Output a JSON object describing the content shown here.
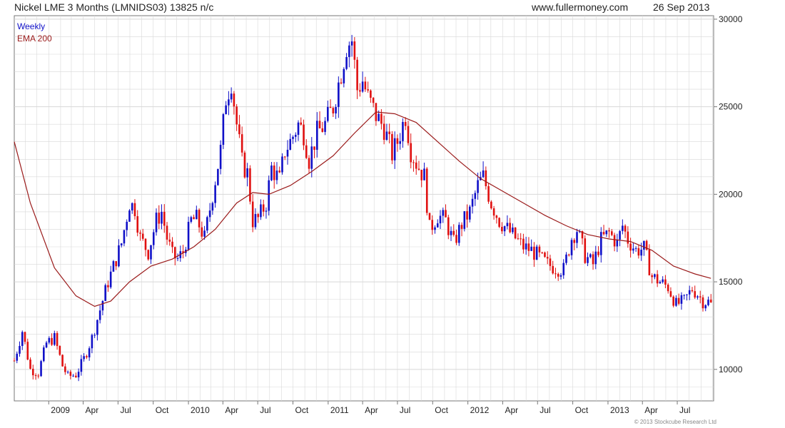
{
  "header": {
    "title": "Nickel LME 3 Months (LMNIDS03) 13825 n/c",
    "site": "www.fullermoney.com",
    "date": "26 Sep 2013"
  },
  "copyright": "© 2013 Stockcube Research Ltd",
  "colors": {
    "up": "#1010c8",
    "down": "#e01010",
    "ema": "#9a1a1a",
    "grid": "#d8d8d8",
    "frame": "#777777",
    "weekly": "#1010c8"
  },
  "chart_data": {
    "type": "candlestick",
    "title": "Nickel LME 3 Months (LMNIDS03) 13825 n/c",
    "frequency_label": "Weekly",
    "x_range": [
      "2008-10-03",
      "2013-10-04"
    ],
    "ylim": [
      8200,
      30200
    ],
    "grid": true,
    "legend": [
      "Weekly",
      "EMA 200"
    ],
    "y_ticks": [
      {
        "value": 10000,
        "label": "10000"
      },
      {
        "value": 15000,
        "label": "15000"
      },
      {
        "value": 20000,
        "label": "20000"
      },
      {
        "value": 25000,
        "label": "25000"
      },
      {
        "value": 30000,
        "label": "30000"
      }
    ],
    "x_ticks": [
      {
        "date": "2009-01-01",
        "label": "2009"
      },
      {
        "date": "2009-04-01",
        "label": "Apr"
      },
      {
        "date": "2009-07-01",
        "label": "Jul"
      },
      {
        "date": "2009-10-01",
        "label": "Oct"
      },
      {
        "date": "2010-01-01",
        "label": "2010"
      },
      {
        "date": "2010-04-01",
        "label": "Apr"
      },
      {
        "date": "2010-07-01",
        "label": "Jul"
      },
      {
        "date": "2010-10-01",
        "label": "Oct"
      },
      {
        "date": "2011-01-01",
        "label": "2011"
      },
      {
        "date": "2011-04-01",
        "label": "Apr"
      },
      {
        "date": "2011-07-01",
        "label": "Jul"
      },
      {
        "date": "2011-10-01",
        "label": "Oct"
      },
      {
        "date": "2012-01-01",
        "label": "2012"
      },
      {
        "date": "2012-04-01",
        "label": "Apr"
      },
      {
        "date": "2012-07-01",
        "label": "Jul"
      },
      {
        "date": "2012-10-01",
        "label": "Oct"
      },
      {
        "date": "2013-01-01",
        "label": "2013"
      },
      {
        "date": "2013-04-01",
        "label": "Apr"
      },
      {
        "date": "2013-07-01",
        "label": "Jul"
      }
    ],
    "series": [
      {
        "name": "Weekly",
        "close_path": [
          [
            "2008-10-03",
            10500
          ],
          [
            "2008-10-24",
            12200
          ],
          [
            "2008-11-14",
            10000
          ],
          [
            "2008-12-05",
            9800
          ],
          [
            "2008-12-26",
            11500
          ],
          [
            "2009-01-16",
            11800
          ],
          [
            "2009-02-06",
            10200
          ],
          [
            "2009-02-20",
            9600
          ],
          [
            "2009-03-13",
            9700
          ],
          [
            "2009-04-03",
            10600
          ],
          [
            "2009-04-24",
            11800
          ],
          [
            "2009-05-15",
            13400
          ],
          [
            "2009-06-05",
            15000
          ],
          [
            "2009-06-26",
            16300
          ],
          [
            "2009-07-10",
            17200
          ],
          [
            "2009-07-31",
            19500
          ],
          [
            "2009-08-14",
            19200
          ],
          [
            "2009-08-28",
            17500
          ],
          [
            "2009-09-18",
            16700
          ],
          [
            "2009-10-09",
            18500
          ],
          [
            "2009-10-23",
            19000
          ],
          [
            "2009-11-06",
            17500
          ],
          [
            "2009-11-20",
            16500
          ],
          [
            "2009-12-04",
            16300
          ],
          [
            "2009-12-18",
            16700
          ],
          [
            "2010-01-08",
            18500
          ],
          [
            "2010-01-22",
            18600
          ],
          [
            "2010-02-12",
            17500
          ],
          [
            "2010-03-05",
            20000
          ],
          [
            "2010-03-26",
            22500
          ],
          [
            "2010-04-09",
            25500
          ],
          [
            "2010-04-23",
            26500
          ],
          [
            "2010-05-07",
            24000
          ],
          [
            "2010-05-21",
            21800
          ],
          [
            "2010-06-04",
            21200
          ],
          [
            "2010-06-18",
            18500
          ],
          [
            "2010-07-02",
            18600
          ],
          [
            "2010-07-23",
            19500
          ],
          [
            "2010-08-06",
            21500
          ],
          [
            "2010-08-27",
            20800
          ],
          [
            "2010-09-10",
            22500
          ],
          [
            "2010-09-24",
            23000
          ],
          [
            "2010-10-15",
            24000
          ],
          [
            "2010-10-29",
            23500
          ],
          [
            "2010-11-12",
            22000
          ],
          [
            "2010-12-03",
            23500
          ],
          [
            "2010-12-24",
            24000
          ],
          [
            "2011-01-14",
            25000
          ],
          [
            "2011-02-04",
            27000
          ],
          [
            "2011-02-18",
            28500
          ],
          [
            "2011-03-04",
            28800
          ],
          [
            "2011-03-18",
            26000
          ],
          [
            "2011-04-01",
            26500
          ],
          [
            "2011-04-15",
            25500
          ],
          [
            "2011-05-06",
            24500
          ],
          [
            "2011-05-27",
            23800
          ],
          [
            "2011-06-17",
            22300
          ],
          [
            "2011-07-01",
            23000
          ],
          [
            "2011-07-22",
            24500
          ],
          [
            "2011-08-05",
            22500
          ],
          [
            "2011-08-19",
            21800
          ],
          [
            "2011-09-09",
            21000
          ],
          [
            "2011-09-23",
            18000
          ],
          [
            "2011-10-14",
            18800
          ],
          [
            "2011-11-04",
            18500
          ],
          [
            "2011-11-25",
            17200
          ],
          [
            "2011-12-16",
            18300
          ],
          [
            "2012-01-06",
            19000
          ],
          [
            "2012-01-27",
            20500
          ],
          [
            "2012-02-10",
            21000
          ],
          [
            "2012-03-02",
            19500
          ],
          [
            "2012-03-23",
            18500
          ],
          [
            "2012-04-13",
            18000
          ],
          [
            "2012-05-04",
            17500
          ],
          [
            "2012-05-25",
            17000
          ],
          [
            "2012-06-15",
            16800
          ],
          [
            "2012-07-06",
            16400
          ],
          [
            "2012-07-27",
            16000
          ],
          [
            "2012-08-17",
            15800
          ],
          [
            "2012-09-07",
            15700
          ],
          [
            "2012-09-28",
            17500
          ],
          [
            "2012-10-12",
            18000
          ],
          [
            "2012-11-02",
            16500
          ],
          [
            "2012-11-23",
            16000
          ],
          [
            "2012-12-14",
            17400
          ],
          [
            "2013-01-04",
            17800
          ],
          [
            "2013-01-25",
            17200
          ],
          [
            "2013-02-08",
            18200
          ],
          [
            "2013-02-22",
            17400
          ],
          [
            "2013-03-15",
            16800
          ],
          [
            "2013-04-05",
            16900
          ],
          [
            "2013-04-26",
            15300
          ],
          [
            "2013-05-17",
            15000
          ],
          [
            "2013-06-07",
            14700
          ],
          [
            "2013-06-28",
            13700
          ],
          [
            "2013-07-19",
            13900
          ],
          [
            "2013-08-09",
            14600
          ],
          [
            "2013-08-23",
            14300
          ],
          [
            "2013-09-06",
            13900
          ],
          [
            "2013-09-27",
            13825
          ]
        ]
      },
      {
        "name": "EMA 200",
        "points": [
          [
            "2008-10-03",
            23000
          ],
          [
            "2008-11-14",
            19500
          ],
          [
            "2009-01-16",
            15800
          ],
          [
            "2009-03-13",
            14200
          ],
          [
            "2009-05-01",
            13600
          ],
          [
            "2009-06-12",
            13900
          ],
          [
            "2009-07-31",
            15000
          ],
          [
            "2009-09-25",
            15900
          ],
          [
            "2009-11-20",
            16300
          ],
          [
            "2010-01-15",
            17000
          ],
          [
            "2010-03-12",
            18000
          ],
          [
            "2010-05-07",
            19500
          ],
          [
            "2010-06-18",
            20100
          ],
          [
            "2010-07-30",
            20000
          ],
          [
            "2010-09-24",
            20500
          ],
          [
            "2010-11-19",
            21300
          ],
          [
            "2011-01-14",
            22200
          ],
          [
            "2011-03-11",
            23500
          ],
          [
            "2011-05-06",
            24700
          ],
          [
            "2011-06-24",
            24600
          ],
          [
            "2011-08-19",
            24100
          ],
          [
            "2011-10-14",
            23000
          ],
          [
            "2011-12-09",
            21900
          ],
          [
            "2012-02-03",
            20900
          ],
          [
            "2012-03-30",
            20200
          ],
          [
            "2012-05-25",
            19500
          ],
          [
            "2012-07-20",
            18800
          ],
          [
            "2012-09-14",
            18200
          ],
          [
            "2012-11-09",
            17700
          ],
          [
            "2013-01-04",
            17450
          ],
          [
            "2013-03-01",
            17300
          ],
          [
            "2013-04-26",
            16800
          ],
          [
            "2013-06-21",
            15900
          ],
          [
            "2013-08-16",
            15450
          ],
          [
            "2013-09-27",
            15200
          ]
        ]
      }
    ]
  }
}
